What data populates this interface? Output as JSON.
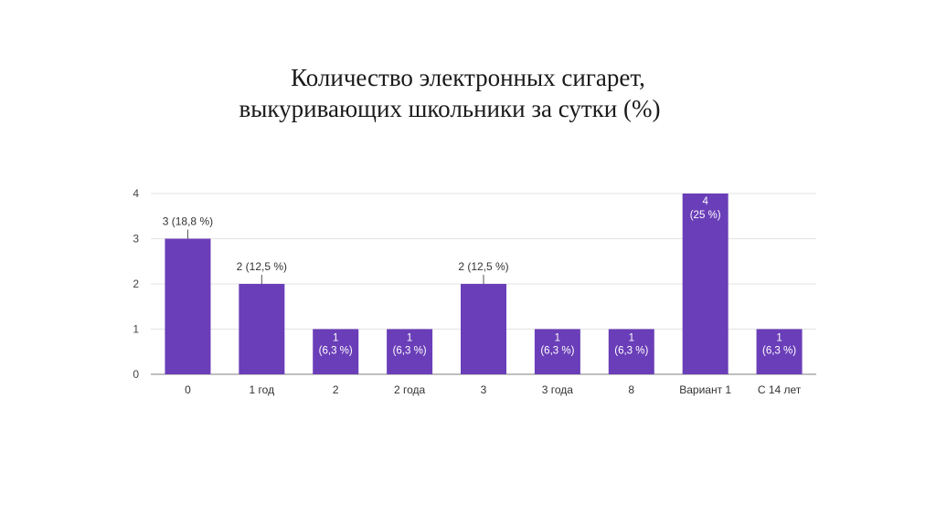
{
  "slide": {
    "title_line_1": "Количество электронных сигарет,",
    "title_line_2": "выкуривающих школьники за сутки (%)"
  },
  "colors": {
    "bar": "#6a3eb8",
    "grid": "#e3e3e3",
    "axis": "#999999"
  },
  "chart_data": {
    "type": "bar",
    "title": "",
    "xlabel": "",
    "ylabel": "",
    "ylim": [
      0,
      4
    ],
    "yticks": [
      "0",
      "1",
      "2",
      "3",
      "4"
    ],
    "grid": true,
    "categories": [
      "0",
      "1 год",
      "2",
      "2 года",
      "3",
      "3 года",
      "8",
      "Вариант 1",
      "С 14 лет"
    ],
    "values": [
      3,
      2,
      1,
      1,
      2,
      1,
      1,
      4,
      1
    ],
    "percent_labels": [
      "18,8 %",
      "12,5 %",
      "6,3 %",
      "6,3 %",
      "12,5 %",
      "6,3 %",
      "6,3 %",
      "25 %",
      "6,3 %"
    ]
  }
}
